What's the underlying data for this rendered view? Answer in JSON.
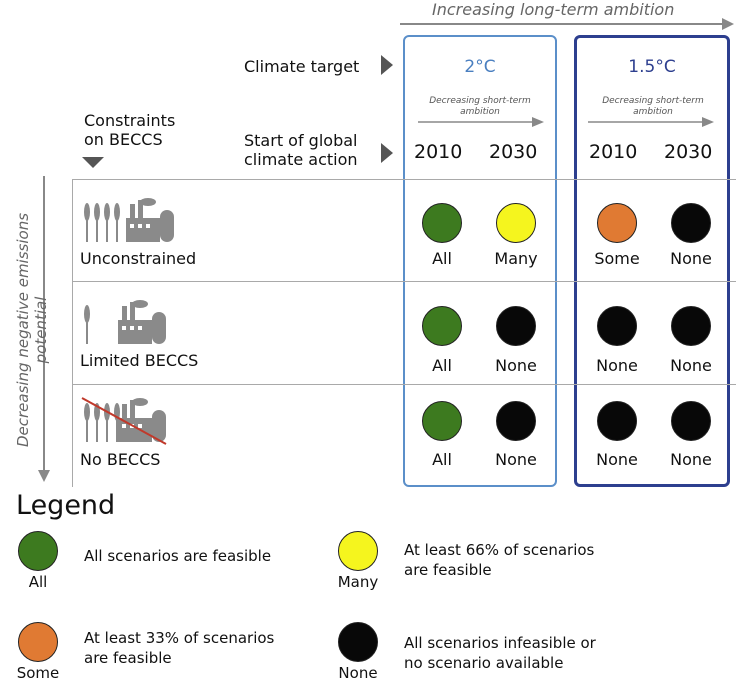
{
  "top_axis": {
    "label": "Increasing long-term ambition"
  },
  "left_axis": {
    "label_line1": "Decreasing negative emissions",
    "label_line2": "potential"
  },
  "header": {
    "climate_target_label": "Climate target",
    "constraints_label_line1": "Constraints",
    "constraints_label_line2": "on BECCS",
    "start_label_line1": "Start of global",
    "start_label_line2": "climate action"
  },
  "targets": [
    {
      "name": "2°C",
      "subtitle_line1": "Decreasing short-term",
      "subtitle_line2": "ambition",
      "years": [
        "2010",
        "2030"
      ],
      "box_color": "#5b8fc9"
    },
    {
      "name": "1.5°C",
      "subtitle_line1": "Decreasing short-term",
      "subtitle_line2": "ambition",
      "years": [
        "2010",
        "2030"
      ],
      "box_color": "#2d3f8f"
    }
  ],
  "rows": [
    {
      "name": "Unconstrained",
      "cells": [
        "All",
        "Many",
        "Some",
        "None"
      ]
    },
    {
      "name": "Limited BECCS",
      "cells": [
        "All",
        "None",
        "None",
        "None"
      ]
    },
    {
      "name": "No BECCS",
      "cells": [
        "All",
        "None",
        "None",
        "None"
      ]
    }
  ],
  "colors": {
    "All": "#3d7a1f",
    "Many": "#f5f51e",
    "Some": "#e07a33",
    "None": "#080808",
    "icon": "#8a8a8a",
    "strike": "#c0392b"
  },
  "icons": [
    "crops-icon",
    "factory-icon"
  ],
  "legend": {
    "title": "Legend",
    "items": [
      {
        "key": "All",
        "label": "All",
        "desc_line1": "All scenarios are feasible",
        "desc_line2": ""
      },
      {
        "key": "Many",
        "label": "Many",
        "desc_line1": "At least 66% of scenarios",
        "desc_line2": "are feasible"
      },
      {
        "key": "Some",
        "label": "Some",
        "desc_line1": "At least 33% of scenarios",
        "desc_line2": "are feasible"
      },
      {
        "key": "None",
        "label": "None",
        "desc_line1": "All scenarios infeasible or",
        "desc_line2": "no scenario available"
      }
    ]
  }
}
